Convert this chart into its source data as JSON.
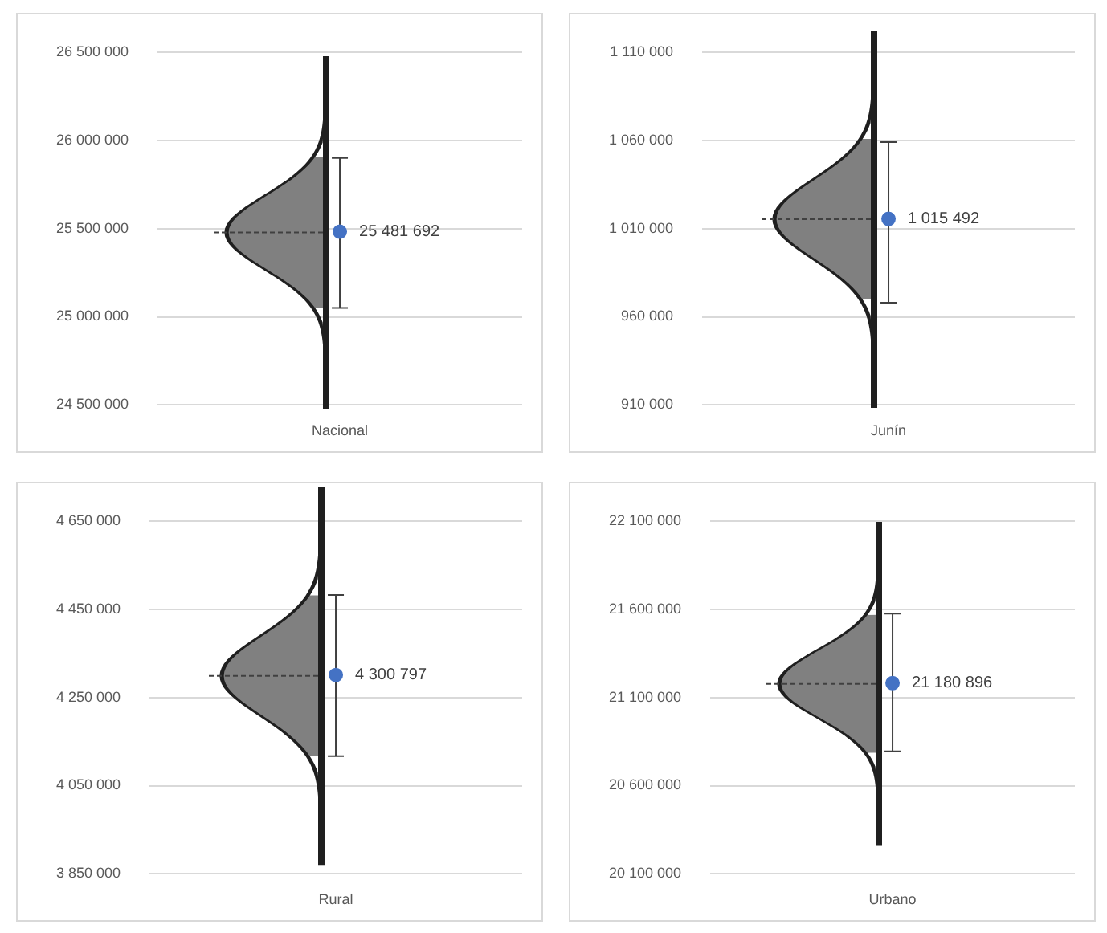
{
  "chart_data": [
    {
      "type": "scatter",
      "categories": [
        "Nacional"
      ],
      "values": [
        25481692
      ],
      "errors": [
        [
          25050000,
          25900000
        ]
      ],
      "value_labels": [
        "25 481 692"
      ],
      "color": "#4472c4",
      "marker": "circle",
      "grid": "y",
      "ylim": [
        24500000,
        26500000
      ],
      "yticks": [
        {
          "value": 24500000,
          "label": "24 500 000"
        },
        {
          "value": 25000000,
          "label": "25 000 000"
        },
        {
          "value": 25500000,
          "label": "25 500 000"
        },
        {
          "value": 26000000,
          "label": "26 000 000"
        },
        {
          "value": 26500000,
          "label": "26 500 000"
        }
      ]
    },
    {
      "type": "scatter",
      "categories": [
        "Junín"
      ],
      "values": [
        1015492
      ],
      "errors": [
        [
          968000,
          1059000
        ]
      ],
      "value_labels": [
        "1 015 492"
      ],
      "color": "#4472c4",
      "marker": "circle",
      "grid": "y",
      "ylim": [
        910000,
        1110000
      ],
      "yticks": [
        {
          "value": 910000,
          "label": "910 000"
        },
        {
          "value": 960000,
          "label": "960 000"
        },
        {
          "value": 1010000,
          "label": "1 010 000"
        },
        {
          "value": 1060000,
          "label": "1 060 000"
        },
        {
          "value": 1110000,
          "label": "1 110 000"
        }
      ]
    },
    {
      "type": "scatter",
      "categories": [
        "Rural"
      ],
      "values": [
        4300797
      ],
      "errors": [
        [
          4117000,
          4482000
        ]
      ],
      "value_labels": [
        "4 300 797"
      ],
      "color": "#4472c4",
      "marker": "circle",
      "grid": "y",
      "ylim": [
        3850000,
        4650000
      ],
      "yticks": [
        {
          "value": 3850000,
          "label": "3 850 000"
        },
        {
          "value": 4050000,
          "label": "4 050 000"
        },
        {
          "value": 4250000,
          "label": "4 250 000"
        },
        {
          "value": 4450000,
          "label": "4 450 000"
        },
        {
          "value": 4650000,
          "label": "4 650 000"
        }
      ]
    },
    {
      "type": "scatter",
      "categories": [
        "Urbano"
      ],
      "values": [
        21180896
      ],
      "errors": [
        [
          20794000,
          21575000
        ]
      ],
      "value_labels": [
        "21 180 896"
      ],
      "color": "#4472c4",
      "marker": "circle",
      "grid": "y",
      "ylim": [
        20100000,
        22100000
      ],
      "yticks": [
        {
          "value": 20100000,
          "label": "20 100 000"
        },
        {
          "value": 20600000,
          "label": "20 600 000"
        },
        {
          "value": 21100000,
          "label": "21 100 000"
        },
        {
          "value": 21600000,
          "label": "21 600 000"
        },
        {
          "value": 22100000,
          "label": "22 100 000"
        }
      ]
    }
  ]
}
